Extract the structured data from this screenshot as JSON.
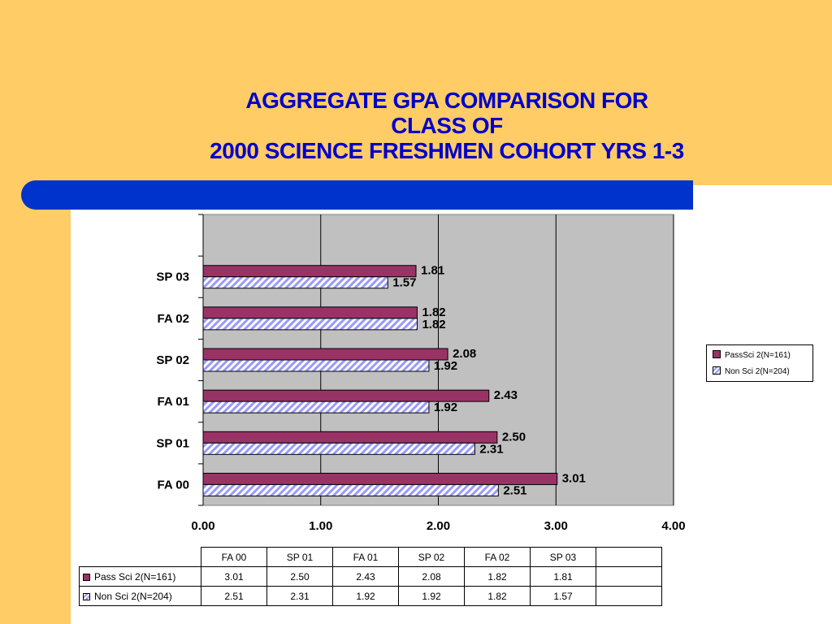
{
  "title": {
    "line1": "AGGREGATE GPA COMPARISON FOR",
    "line2": "CLASS OF",
    "line3": "2000 SCIENCE FRESHMEN COHORT YRS 1-3"
  },
  "colors": {
    "background": "#ffcc66",
    "title": "#0000cc",
    "accent_bar": "#0033cc",
    "plot_area": "#c0c0c0",
    "pass_series": "#993366",
    "non_series_stripe": "#9999ff"
  },
  "chart_data": {
    "type": "bar",
    "orientation": "horizontal",
    "categories": [
      "FA 00",
      "SP 01",
      "FA 01",
      "SP 02",
      "FA 02",
      "SP 03"
    ],
    "series": [
      {
        "name": "Pass Sci 2(N=161)",
        "values": [
          3.01,
          2.5,
          2.43,
          2.08,
          1.82,
          1.81
        ]
      },
      {
        "name": "Non Sci 2(N=204)",
        "values": [
          2.51,
          2.31,
          1.92,
          1.92,
          1.82,
          1.57
        ]
      }
    ],
    "value_labels": [
      [
        "3.01",
        "2.50",
        "2.43",
        "2.08",
        "1.82",
        "1.81"
      ],
      [
        "2.51",
        "2.31",
        "1.92",
        "1.92",
        "1.82",
        "1.57"
      ]
    ],
    "xlim": [
      0,
      4
    ],
    "xticks": [
      "0.00",
      "1.00",
      "2.00",
      "3.00",
      "4.00"
    ],
    "grid": "vertical",
    "legend_position": "right",
    "legend": [
      "PassSci 2(N=161)",
      "Non Sci 2(N=204)"
    ]
  },
  "table": {
    "headers": [
      "FA 00",
      "SP 01",
      "FA 01",
      "SP 02",
      "FA 02",
      "SP 03"
    ],
    "rows": [
      {
        "label": "Pass Sci 2(N=161)",
        "values": [
          "3.01",
          "2.50",
          "2.43",
          "2.08",
          "1.82",
          "1.81"
        ]
      },
      {
        "label": "Non Sci 2(N=204)",
        "values": [
          "2.51",
          "2.31",
          "1.92",
          "1.92",
          "1.82",
          "1.57"
        ]
      }
    ]
  }
}
